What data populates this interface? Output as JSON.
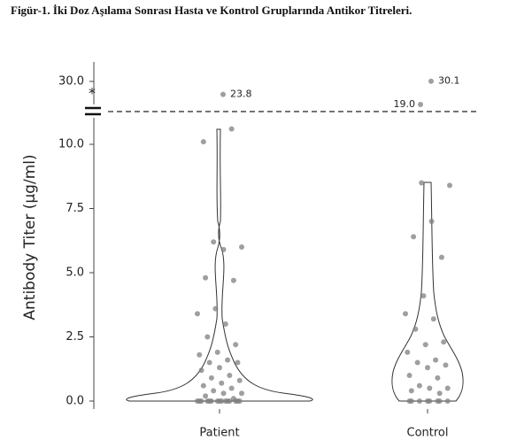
{
  "chart_data": {
    "type": "violin",
    "title": "Figür-1. İki Doz Aşılama Sonrası Hasta ve Kontrol Gruplarında Antikor Titreleri.",
    "y_label": "Antibody Titer (µg/ml)",
    "annotation": "*",
    "categories": [
      "Patient",
      "Control"
    ],
    "series": [
      {
        "name": "Patient",
        "color": "#7f7f7f",
        "values": [
          0,
          0,
          0,
          0,
          0,
          0,
          0,
          0,
          0,
          0,
          0,
          0,
          0,
          0,
          0,
          10.1,
          10.6,
          6.2,
          6.0,
          5.9,
          4.8,
          4.7,
          3.6,
          3.4,
          3.0,
          2.5,
          2.2,
          1.9,
          1.8,
          1.6,
          1.5,
          1.5,
          1.3,
          1.2,
          1.0,
          0.9,
          0.8,
          0.7,
          0.6,
          0.5,
          0.4,
          0.3,
          0.3,
          0.2,
          0.1
        ],
        "outliers": [
          23.8
        ],
        "outlier_labels": [
          "23.8"
        ]
      },
      {
        "name": "Control",
        "color": "#7f7f7f",
        "values": [
          0,
          0,
          0,
          0,
          0,
          0,
          0,
          0,
          8.5,
          8.4,
          7.0,
          6.4,
          5.6,
          4.1,
          3.4,
          3.2,
          2.8,
          2.3,
          2.2,
          1.9,
          1.6,
          1.5,
          1.4,
          1.3,
          1.0,
          0.9,
          0.6,
          0.5,
          0.5,
          0.4,
          0.3
        ],
        "outliers": [
          30.1,
          19.0
        ],
        "outlier_labels": [
          "30.1",
          "19.0"
        ]
      }
    ],
    "ylim": [
      -0.3,
      10.8
    ],
    "yticks": [
      {
        "value": 0,
        "label": "0.0"
      },
      {
        "value": 2.5,
        "label": "2.5"
      },
      {
        "value": 5,
        "label": "5.0"
      },
      {
        "value": 7.5,
        "label": "7.5"
      },
      {
        "value": 10,
        "label": "10.0"
      }
    ],
    "upper_ylim": [
      17,
      31
    ],
    "upper_yticks": [
      {
        "value": 30,
        "label": "30.0"
      }
    ]
  }
}
